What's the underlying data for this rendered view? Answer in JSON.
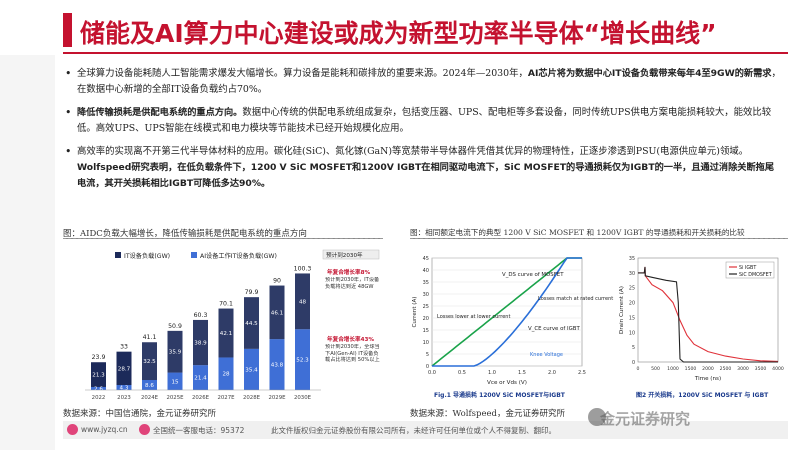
{
  "title": "储能及AI算力中心建设或成为新型功率半导体“增长曲线”",
  "bullets": [
    {
      "text": "全球算力设备能耗随人工智能需求爆发大幅增长。算力设备是能耗和碳排放的重要来源。2024年—2030年，",
      "bold": "AI芯片将为数据中心IT设备负载带来每年4至9GW的新需求",
      "tail": "，在数据中心新增的全部IT设备负载约占70%。"
    },
    {
      "bold": "降低传输损耗是供配电系统的重点方向。",
      "text": "数据中心传统的供配电系统组成复杂，包括变压器、UPS、配电柜等多套设备，同时传统UPS供电方案电能损耗较大，能效比较低。高效UPS、UPS智能在线模式和电力模块等节能技术已经开始规模化应用。"
    },
    {
      "text": "高效率的实现离不开第三代半导体材料的应用。碳化硅(SiC)、氮化镓(GaN)等宽禁带半导体器件凭借其优异的物理特性，正逐步渗透到PSU(电源供应单元)领域。",
      "bold": "Wolfspeed研究表明，在低负载条件下，1200 V SiC MOSFET和1200V IGBT在相同驱动电流下，SiC MOSFET的导通损耗仅为IGBT的一半，且通过消除关断拖尾电流，其开关损耗相比IGBT可降低多达90%。"
    }
  ],
  "captions": {
    "left": "图：AIDC负载大幅增长，降低传输损耗是供配电系统的重点方向",
    "right": "图：相同额定电流下的典型 1200 V SiC MOSFET 和 1200V IGBT 的导通损耗和开关损耗的比较"
  },
  "sources": {
    "left": "数据来源：中国信通院，金元证券研究所",
    "right": "数据来源：Wolfspeed，金元证券研究所"
  },
  "footer": {
    "site": "www.jyzq.cn",
    "hotline": "全国统一客服电话：95372",
    "disclaimer": "此文件版权归金元证券股份有限公司所有，未经许可任何单位或个人不得复制、翻印。"
  },
  "watermark": "金元证券研究",
  "bar_chart": {
    "legend": [
      "IT设备负载(GW)",
      "AI设备工作IT设备负载(GW)"
    ],
    "callouts": {
      "total_top": "预计到2030年",
      "ann1_title": "年复合增长率8%",
      "ann1_text": "预计到2030年，IT设备负载将达到近 48GW",
      "ann2_title": "年复合增长率43%",
      "ann2_text": "预计到2030年，全球当下AI(Gen-AI) IT设备负载占比将达到 50%以上"
    },
    "categories": [
      "2022",
      "2023",
      "2024E",
      "2025E",
      "2026E",
      "2027E",
      "2028E",
      "2029E",
      "2030E"
    ],
    "it": [
      21.3,
      28.7,
      32.5,
      35.9,
      38.9,
      42.1,
      44.5,
      46.1,
      48.0
    ],
    "ai": [
      2.6,
      4.3,
      8.6,
      15.0,
      21.4,
      28.0,
      35.4,
      43.8,
      52.3
    ],
    "totals": [
      23.9,
      33.0,
      41.1,
      50.9,
      60.3,
      70.1,
      79.9,
      90.0,
      100.3
    ],
    "colors": {
      "it": "#1c2a5a",
      "ai": "#3f6fd6"
    }
  },
  "iv_chart": {
    "title": "Fig.1 导通损耗 1200V SiC MOSFET与IGBT",
    "xlabel": "Vce or Vds (V)",
    "ylabel": "Current (A)",
    "annot_sic": "V_DS curve of MOSFET",
    "annot_igbt": "V_CE curve of IGBT",
    "annot_low": "Losses lower at lower current",
    "annot_match": "Losses match at rated current",
    "annot_knee": "Knee Voltage",
    "x_ticks": [
      "0.0",
      "0.5",
      "1.0",
      "1.5",
      "2.0",
      "2.5"
    ],
    "y_ticks": [
      "0",
      "5",
      "10",
      "15",
      "20",
      "25",
      "30",
      "35",
      "40",
      "45"
    ]
  },
  "sw_chart": {
    "title": "图2 开关损耗，1200V SiC MOSFET 与 IGBT",
    "xlabel": "Time (ns)",
    "ylabel": "Drain Current (A)",
    "legend": [
      "Si IGBT",
      "SiC DMOSFET"
    ],
    "x_ticks": [
      "0",
      "500",
      "1000",
      "1500",
      "2000",
      "2500",
      "3000",
      "3500",
      "4000"
    ],
    "y_ticks": [
      "0",
      "5",
      "10",
      "15",
      "20",
      "25",
      "30",
      "35"
    ]
  }
}
